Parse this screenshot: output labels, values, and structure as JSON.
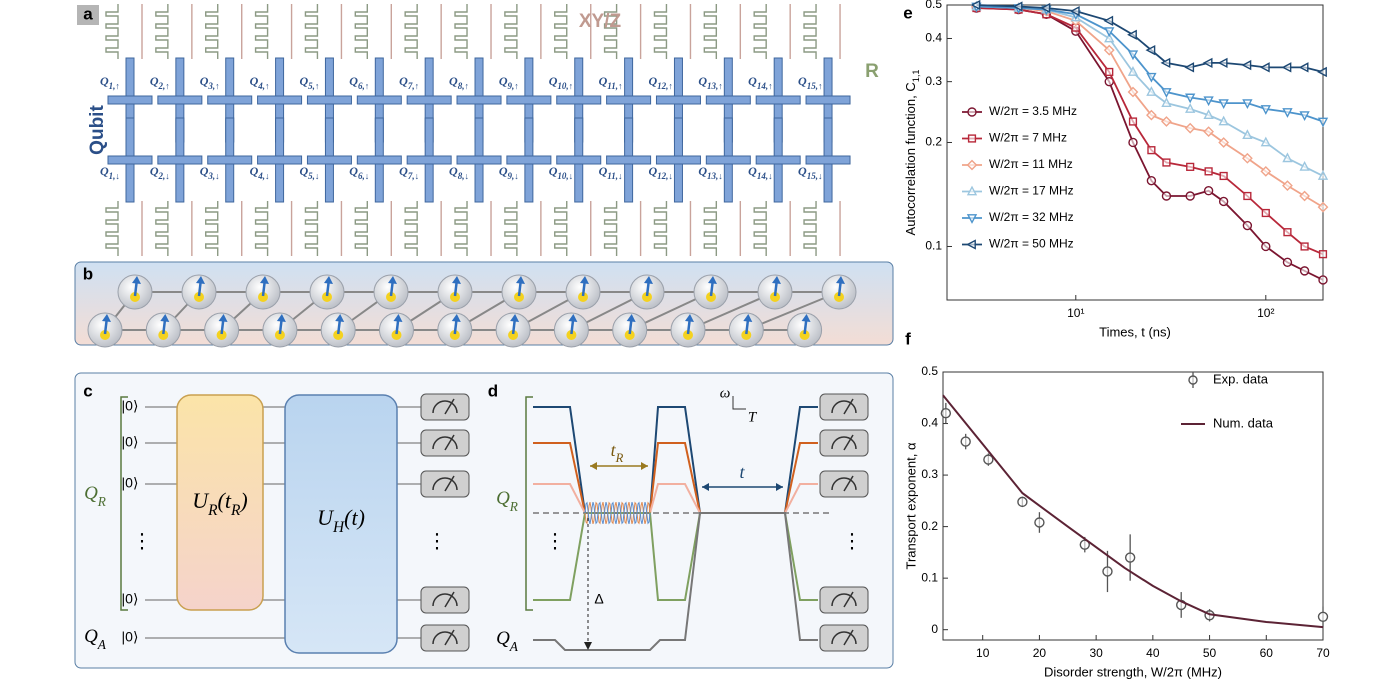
{
  "panel_labels": [
    "a",
    "b",
    "c",
    "d",
    "e",
    "f"
  ],
  "panel_a": {
    "qubit_axis": "Qubit",
    "control": "XY/Z",
    "readout": "R",
    "symbol": "Q",
    "up": [
      "1,↑",
      "2,↑",
      "3,↑",
      "4,↑",
      "5,↑",
      "6,↑",
      "7,↑",
      "8,↑",
      "9,↑",
      "10,↑",
      "11,↑",
      "12,↑",
      "13,↑",
      "14,↑",
      "15,↑"
    ],
    "down": [
      "1,↓",
      "2,↓",
      "3,↓",
      "4,↓",
      "5,↓",
      "6,↓",
      "7,↓",
      "8,↓",
      "9,↓",
      "10,↓",
      "11,↓",
      "12,↓",
      "13,↓",
      "14,↓",
      "15,↓"
    ]
  },
  "panel_c": {
    "ket": "|0⟩",
    "dots": "⋮",
    "qr": [
      {
        "text": "Q",
        "sub": "R"
      }
    ],
    "qa": [
      {
        "text": "Q",
        "sub": "A"
      }
    ],
    "ur": [
      {
        "text": "U",
        "sub": "R"
      },
      {
        "text": "(t",
        "sub": "R"
      },
      {
        "text": ")"
      }
    ],
    "uh": [
      {
        "text": "U",
        "sub": "H"
      },
      {
        "text": "(t)"
      }
    ]
  },
  "panel_d": {
    "tr": [
      {
        "text": "t",
        "sub": "R"
      }
    ],
    "t": "t",
    "qr": [
      {
        "text": "Q",
        "sub": "R"
      }
    ],
    "qa": [
      {
        "text": "Q",
        "sub": "A"
      }
    ],
    "delta": "Δ",
    "omega": "ω",
    "time": "T",
    "dots": "⋮"
  },
  "chart_data": [
    {
      "type": "line",
      "xlabel": "Times, t (ns)",
      "ylabel": [
        {
          "text": "Autocorrelation function, C",
          "sub": "1,1"
        }
      ],
      "xscale": "log",
      "yscale": "log",
      "xlim": [
        2.1,
        200
      ],
      "ylim": [
        0.07,
        0.5
      ],
      "xticks": [
        {
          "value": 10,
          "label": "10¹"
        },
        {
          "value": 100,
          "label": "10²"
        }
      ],
      "yticks": [
        0.1,
        0.2,
        0.3,
        0.4,
        0.5
      ],
      "legend": "left",
      "x": [
        3,
        5,
        7,
        10,
        15,
        20,
        25,
        30,
        40,
        50,
        60,
        80,
        100,
        130,
        160,
        200
      ],
      "series": [
        {
          "name": "W/2π = 3.5 MHz",
          "color": "#7b1530",
          "marker": "circle",
          "values": [
            0.49,
            0.485,
            0.47,
            0.42,
            0.3,
            0.2,
            0.155,
            0.14,
            0.14,
            0.145,
            0.135,
            0.115,
            0.1,
            0.09,
            0.085,
            0.08
          ]
        },
        {
          "name": "W/2π = 7 MHz",
          "color": "#b8283a",
          "marker": "square",
          "values": [
            0.49,
            0.485,
            0.47,
            0.43,
            0.32,
            0.23,
            0.19,
            0.175,
            0.17,
            0.165,
            0.16,
            0.14,
            0.125,
            0.11,
            0.1,
            0.095
          ]
        },
        {
          "name": "W/2π = 11 MHz",
          "color": "#f0a48a",
          "marker": "diamond",
          "values": [
            0.495,
            0.49,
            0.48,
            0.45,
            0.37,
            0.28,
            0.24,
            0.23,
            0.22,
            0.215,
            0.2,
            0.18,
            0.165,
            0.15,
            0.14,
            0.13
          ]
        },
        {
          "name": "W/2π = 17 MHz",
          "color": "#9cc6df",
          "marker": "triangle-up",
          "values": [
            0.495,
            0.49,
            0.485,
            0.46,
            0.4,
            0.32,
            0.28,
            0.26,
            0.25,
            0.24,
            0.23,
            0.21,
            0.2,
            0.18,
            0.17,
            0.16
          ]
        },
        {
          "name": "W/2π = 32 MHz",
          "color": "#4d94cc",
          "marker": "triangle-down",
          "values": [
            0.495,
            0.49,
            0.485,
            0.47,
            0.42,
            0.36,
            0.31,
            0.28,
            0.27,
            0.265,
            0.26,
            0.26,
            0.25,
            0.245,
            0.24,
            0.23
          ]
        },
        {
          "name": "W/2π = 50 MHz",
          "color": "#1d4873",
          "marker": "triangle-left",
          "values": [
            0.5,
            0.495,
            0.49,
            0.48,
            0.45,
            0.41,
            0.37,
            0.34,
            0.33,
            0.34,
            0.34,
            0.335,
            0.33,
            0.33,
            0.33,
            0.32
          ]
        }
      ]
    },
    {
      "type": "scatter",
      "xlabel": "Disorder strength, W/2π (MHz)",
      "ylabel": "Transport exponent, α",
      "xlim": [
        3,
        70
      ],
      "ylim": [
        -0.02,
        0.5
      ],
      "xticks": [
        10,
        20,
        30,
        40,
        50,
        60,
        70
      ],
      "yticks": [
        0,
        0.1,
        0.2,
        0.3,
        0.4,
        0.5
      ],
      "legend": "upper right",
      "series": [
        {
          "name": "Exp. data",
          "type": "scatter",
          "color": "#555555",
          "x": [
            3.5,
            7,
            11,
            17,
            20,
            28,
            32,
            36,
            45,
            50,
            70
          ],
          "values": [
            0.42,
            0.365,
            0.33,
            0.248,
            0.208,
            0.165,
            0.113,
            0.14,
            0.048,
            0.028,
            0.025
          ],
          "errors": [
            0.02,
            0.015,
            0.012,
            0.01,
            0.02,
            0.015,
            0.04,
            0.045,
            0.025,
            0.012,
            0.02
          ]
        },
        {
          "name": "Num. data",
          "type": "line",
          "color": "#5c2335",
          "x": [
            3,
            10,
            17,
            25,
            30,
            35,
            40,
            45,
            50,
            60,
            70
          ],
          "values": [
            0.455,
            0.36,
            0.265,
            0.2,
            0.16,
            0.12,
            0.085,
            0.055,
            0.03,
            0.015,
            0.005
          ]
        }
      ]
    }
  ]
}
